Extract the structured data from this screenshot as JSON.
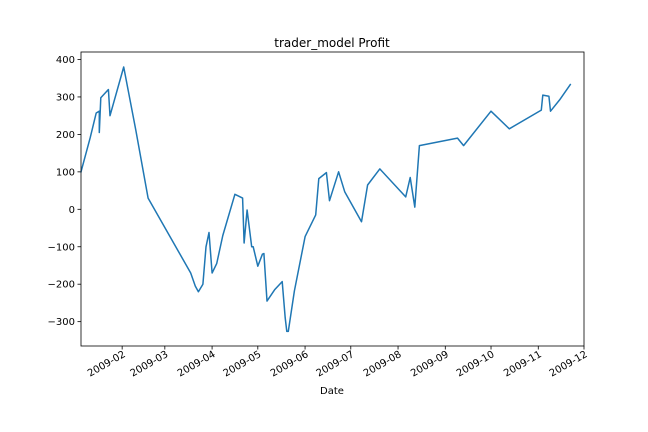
{
  "chart_data": {
    "type": "line",
    "title": "trader_model Profit",
    "xlabel": "Date",
    "ylabel": "",
    "grid": false,
    "legend": "none",
    "xlim": [
      "2009-01-05",
      "2009-12-01"
    ],
    "ylim": [
      -365,
      420
    ],
    "x_ticks": [
      {
        "date": "2009-02-01",
        "label": "2009-02"
      },
      {
        "date": "2009-03-01",
        "label": "2009-03"
      },
      {
        "date": "2009-04-01",
        "label": "2009-04"
      },
      {
        "date": "2009-05-01",
        "label": "2009-05"
      },
      {
        "date": "2009-06-01",
        "label": "2009-06"
      },
      {
        "date": "2009-07-01",
        "label": "2009-07"
      },
      {
        "date": "2009-08-01",
        "label": "2009-08"
      },
      {
        "date": "2009-09-01",
        "label": "2009-09"
      },
      {
        "date": "2009-10-01",
        "label": "2009-10"
      },
      {
        "date": "2009-11-01",
        "label": "2009-11"
      },
      {
        "date": "2009-12-01",
        "label": "2009-12"
      }
    ],
    "y_ticks": [
      -300,
      -200,
      -100,
      0,
      100,
      200,
      300,
      400
    ],
    "line_color": "#1f77b4",
    "series": [
      {
        "x": [
          "2009-01-05",
          "2009-01-11",
          "2009-01-15",
          "2009-01-17",
          "2009-01-17",
          "2009-01-18",
          "2009-01-23",
          "2009-01-24",
          "2009-02-02",
          "2009-02-10",
          "2009-02-18",
          "2009-03-18",
          "2009-03-21",
          "2009-03-23",
          "2009-03-26",
          "2009-03-28",
          "2009-03-30",
          "2009-04-01",
          "2009-04-04",
          "2009-04-08",
          "2009-04-16",
          "2009-04-21",
          "2009-04-22",
          "2009-04-24",
          "2009-04-27",
          "2009-04-28",
          "2009-05-01",
          "2009-05-04",
          "2009-05-05",
          "2009-05-07",
          "2009-05-12",
          "2009-05-17",
          "2009-05-19",
          "2009-05-20",
          "2009-05-21",
          "2009-05-25",
          "2009-06-01",
          "2009-06-08",
          "2009-06-10",
          "2009-06-15",
          "2009-06-17",
          "2009-06-23",
          "2009-06-27",
          "2009-07-08",
          "2009-07-12",
          "2009-07-20",
          "2009-08-06",
          "2009-08-09",
          "2009-08-12",
          "2009-08-15",
          "2009-09-09",
          "2009-09-13",
          "2009-10-01",
          "2009-10-13",
          "2009-11-03",
          "2009-11-04",
          "2009-11-08",
          "2009-11-09",
          "2009-11-15",
          "2009-11-22"
        ],
        "y": [
          100,
          190,
          257,
          262,
          205,
          298,
          320,
          250,
          380,
          210,
          30,
          -170,
          -205,
          -220,
          -200,
          -100,
          -62,
          -170,
          -145,
          -70,
          40,
          30,
          -90,
          -2,
          -100,
          -100,
          -152,
          -120,
          -118,
          -245,
          -215,
          -193,
          -290,
          -326,
          -326,
          -218,
          -73,
          -15,
          82,
          98,
          23,
          100,
          47,
          -33,
          65,
          108,
          33,
          85,
          6,
          170,
          190,
          170,
          262,
          215,
          265,
          305,
          302,
          262,
          292,
          333
        ]
      }
    ]
  }
}
